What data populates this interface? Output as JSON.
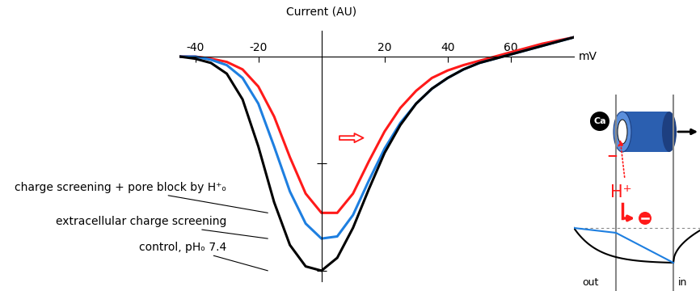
{
  "chart_data": {
    "type": "line",
    "y_label": "Current (AU)",
    "x_label": "mV",
    "x": [
      -45,
      -40,
      -35,
      -30,
      -25,
      -20,
      -15,
      -10,
      -5,
      0,
      5,
      10,
      15,
      20,
      25,
      30,
      35,
      40,
      45,
      50,
      55,
      60,
      65,
      70,
      75,
      80
    ],
    "xlim": [
      -45,
      80
    ],
    "xticks": [
      -40,
      -20,
      20,
      40,
      60
    ],
    "ylim": [
      -1.05,
      0.12
    ],
    "yticks": [
      -1.0,
      -0.5
    ],
    "tick_labels": "x",
    "series": [
      {
        "name": "charge screening + pore block by H⁺ₒ",
        "color": "#ff1a1a",
        "values": [
          0,
          0,
          -0.01,
          -0.025,
          -0.06,
          -0.14,
          -0.28,
          -0.47,
          -0.64,
          -0.73,
          -0.73,
          -0.64,
          -0.49,
          -0.35,
          -0.24,
          -0.16,
          -0.1,
          -0.065,
          -0.04,
          -0.02,
          0.0,
          0.02,
          0.04,
          0.06,
          0.075,
          0.09
        ]
      },
      {
        "name": "extracellular charge screening",
        "color": "#1e7fe0",
        "values": [
          0,
          0,
          -0.015,
          -0.04,
          -0.1,
          -0.22,
          -0.42,
          -0.63,
          -0.78,
          -0.85,
          -0.84,
          -0.74,
          -0.58,
          -0.43,
          -0.31,
          -0.22,
          -0.15,
          -0.1,
          -0.06,
          -0.03,
          -0.01,
          0.01,
          0.03,
          0.05,
          0.07,
          0.09
        ]
      },
      {
        "name": "control, pHₒ 7.4",
        "color": "#000000",
        "values": [
          0,
          -0.01,
          -0.03,
          -0.08,
          -0.2,
          -0.42,
          -0.68,
          -0.88,
          -0.98,
          -1.0,
          -0.94,
          -0.8,
          -0.62,
          -0.45,
          -0.32,
          -0.22,
          -0.15,
          -0.1,
          -0.06,
          -0.03,
          -0.01,
          0.01,
          0.03,
          0.05,
          0.07,
          0.09
        ]
      }
    ]
  },
  "inset": {
    "ion": "Ca",
    "proton": "H⁺",
    "pore_charge": "−",
    "membrane_sides": [
      "out",
      "in"
    ]
  }
}
